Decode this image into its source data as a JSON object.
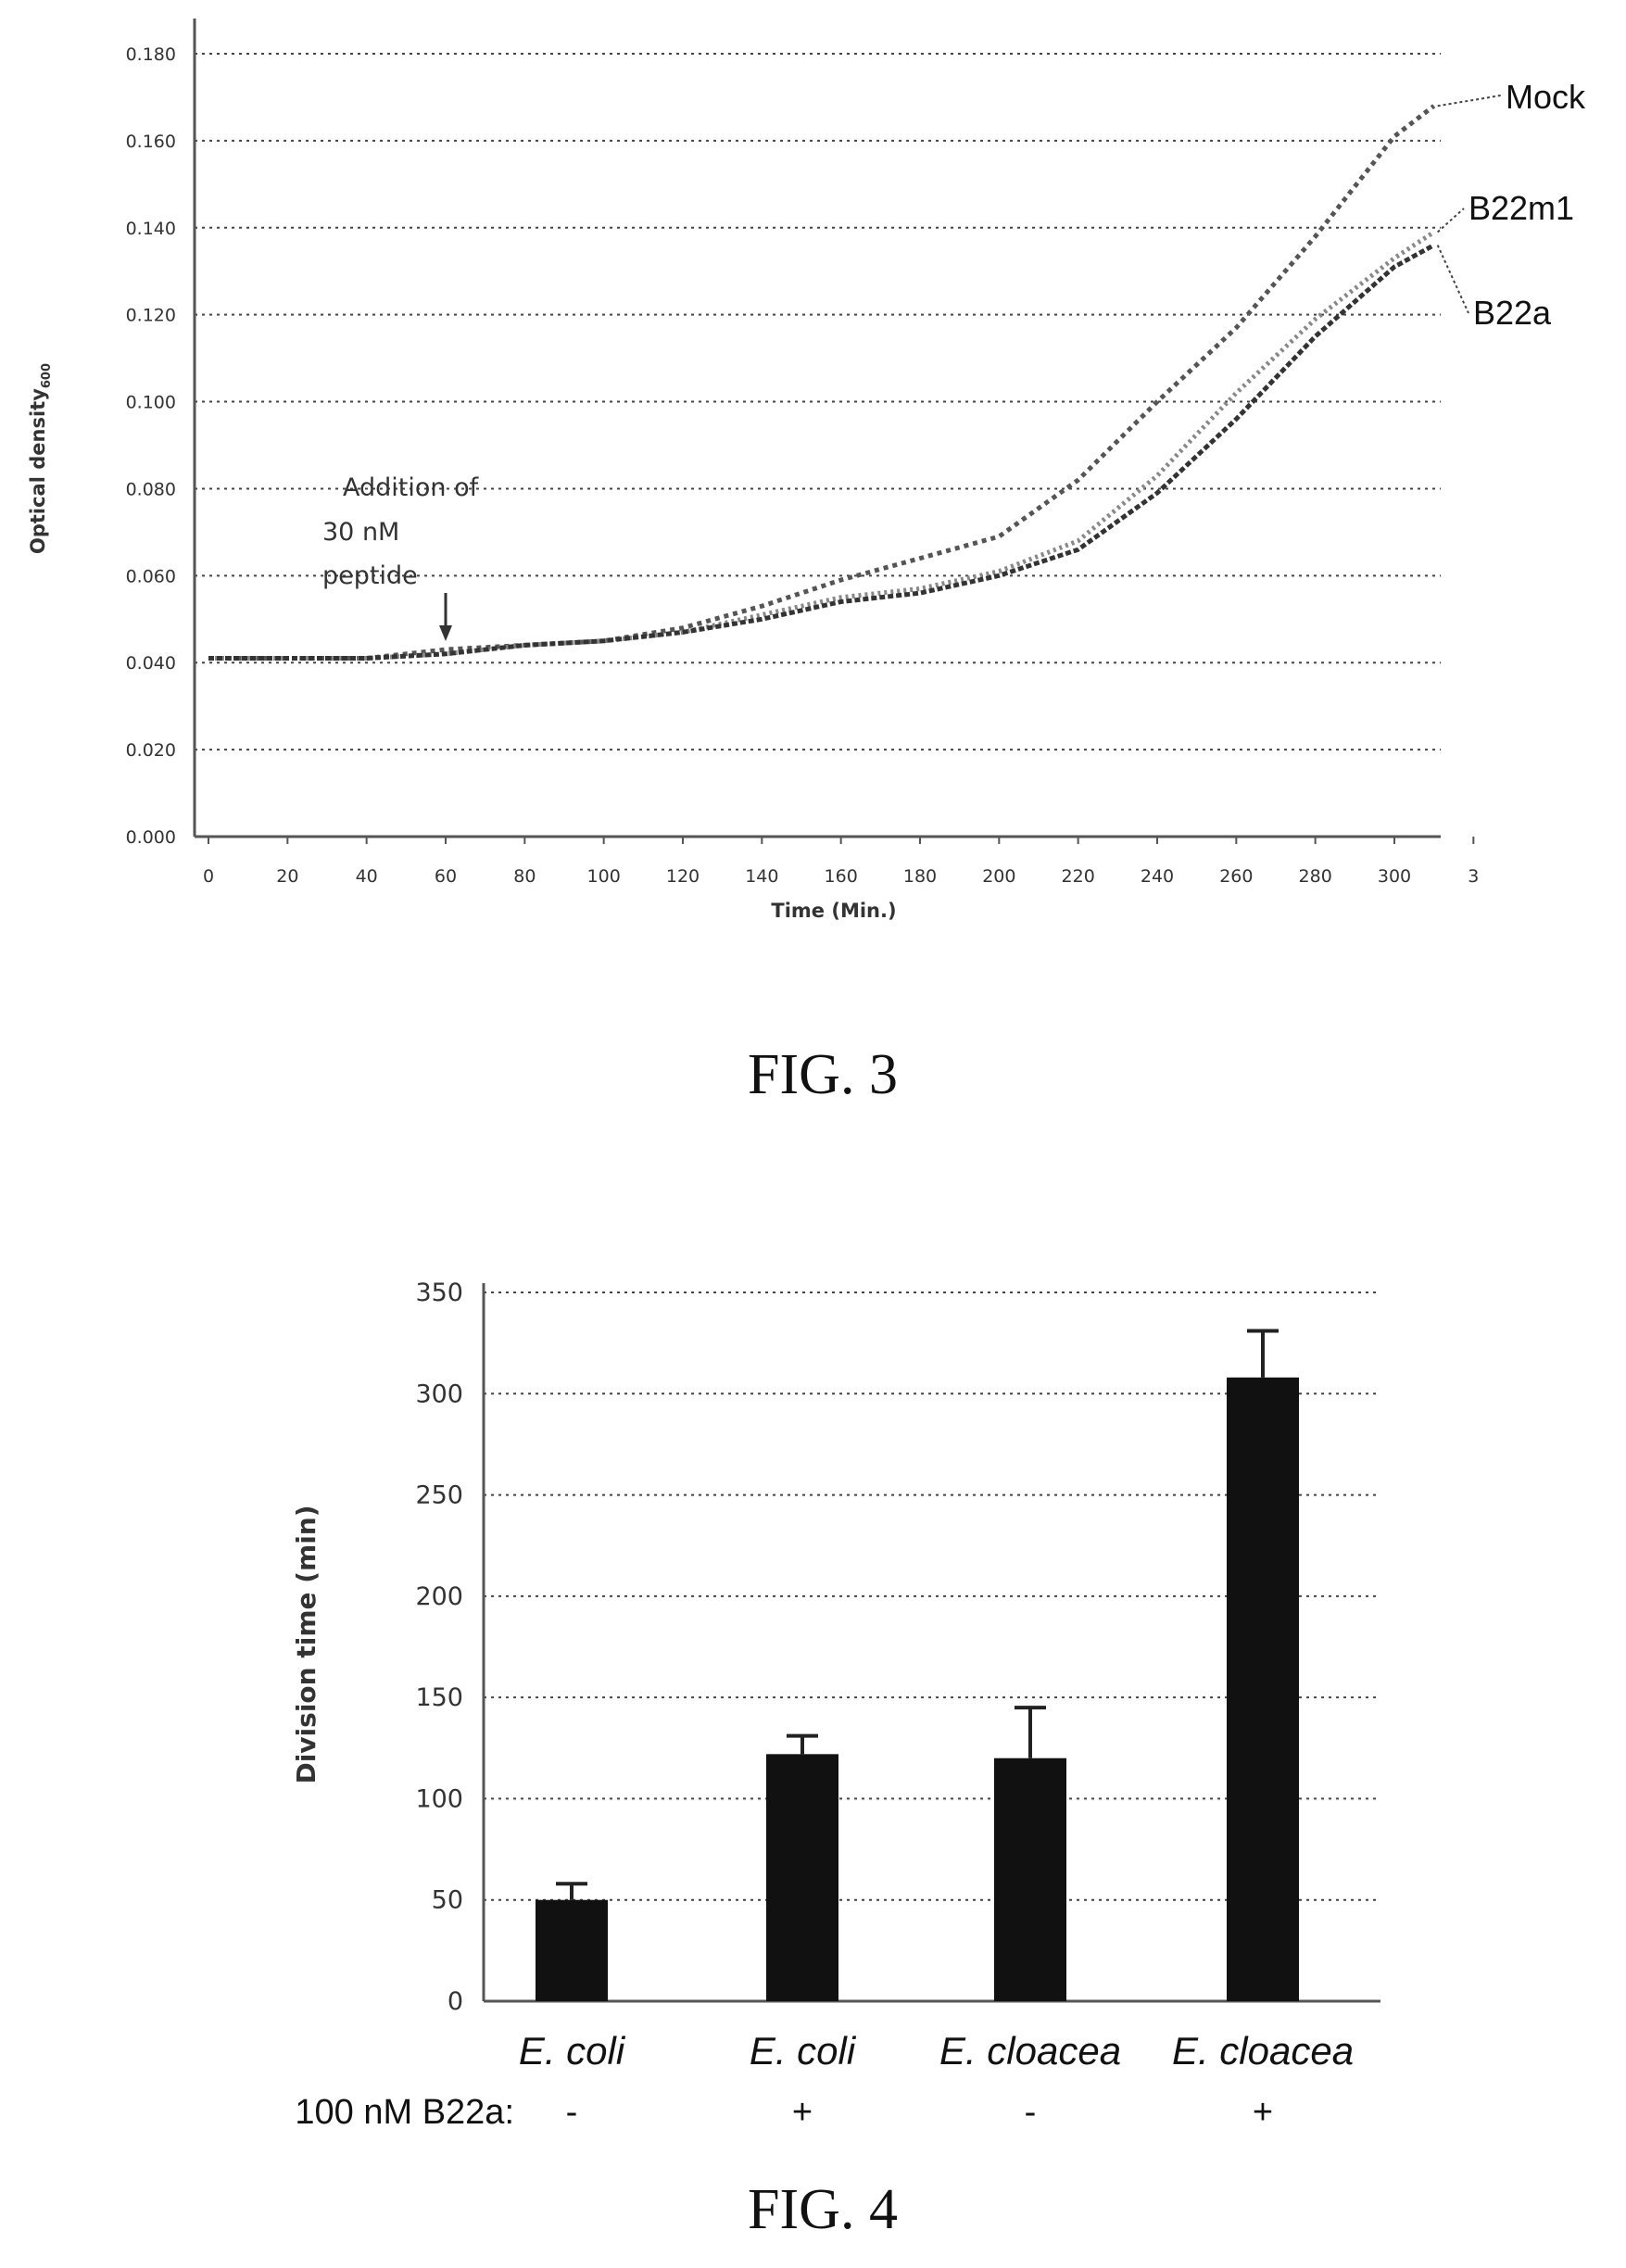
{
  "figures": {
    "fig3_caption": "FIG. 3",
    "fig4_caption": "FIG. 4"
  },
  "chart_data": [
    {
      "type": "line",
      "figure": "FIG. 3",
      "xlabel": "Time (Min.)",
      "ylabel": "Optical density",
      "ylabel_subscript": "600",
      "xlim": [
        0,
        310
      ],
      "ylim": [
        0,
        0.18
      ],
      "x_ticks": [
        "0",
        "20",
        "40",
        "60",
        "80",
        "100",
        "120",
        "140",
        "160",
        "180",
        "200",
        "220",
        "240",
        "260",
        "280",
        "300",
        "3"
      ],
      "y_ticks": [
        "0.000",
        "0.020",
        "0.040",
        "0.060",
        "0.080",
        "0.100",
        "0.120",
        "0.140",
        "0.160",
        "0.180"
      ],
      "grid": true,
      "annotation": {
        "lines": [
          "Addition of",
          "30 nM",
          "peptide"
        ],
        "x": 60
      },
      "x": [
        0,
        20,
        40,
        60,
        80,
        100,
        120,
        140,
        160,
        180,
        200,
        220,
        240,
        260,
        280,
        300,
        310
      ],
      "series": [
        {
          "name": "Mock",
          "color": "#555555",
          "values": [
            0.041,
            0.041,
            0.041,
            0.043,
            0.044,
            0.045,
            0.048,
            0.053,
            0.059,
            0.064,
            0.069,
            0.082,
            0.1,
            0.117,
            0.138,
            0.161,
            0.168
          ]
        },
        {
          "name": "B22m1",
          "color": "#888888",
          "values": [
            0.041,
            0.041,
            0.041,
            0.042,
            0.044,
            0.045,
            0.047,
            0.051,
            0.055,
            0.057,
            0.061,
            0.068,
            0.083,
            0.102,
            0.119,
            0.133,
            0.139
          ]
        },
        {
          "name": "B22a",
          "color": "#333333",
          "values": [
            0.041,
            0.041,
            0.041,
            0.042,
            0.044,
            0.045,
            0.047,
            0.05,
            0.054,
            0.056,
            0.06,
            0.066,
            0.079,
            0.096,
            0.115,
            0.131,
            0.136
          ]
        }
      ]
    },
    {
      "type": "bar",
      "figure": "FIG. 4",
      "ylabel": "Division time (min)",
      "ylim": [
        0,
        350
      ],
      "y_ticks": [
        "0",
        "50",
        "100",
        "150",
        "200",
        "250",
        "300",
        "350"
      ],
      "grid": true,
      "categories": [
        "E. coli",
        "E. coli",
        "E. cloacea",
        "E. cloacea"
      ],
      "condition_label": "100 nM B22a:",
      "conditions": [
        "-",
        "+",
        "-",
        "+"
      ],
      "values": [
        50,
        122,
        120,
        308
      ],
      "errors": [
        8,
        9,
        25,
        23
      ],
      "color": "#111111"
    }
  ]
}
